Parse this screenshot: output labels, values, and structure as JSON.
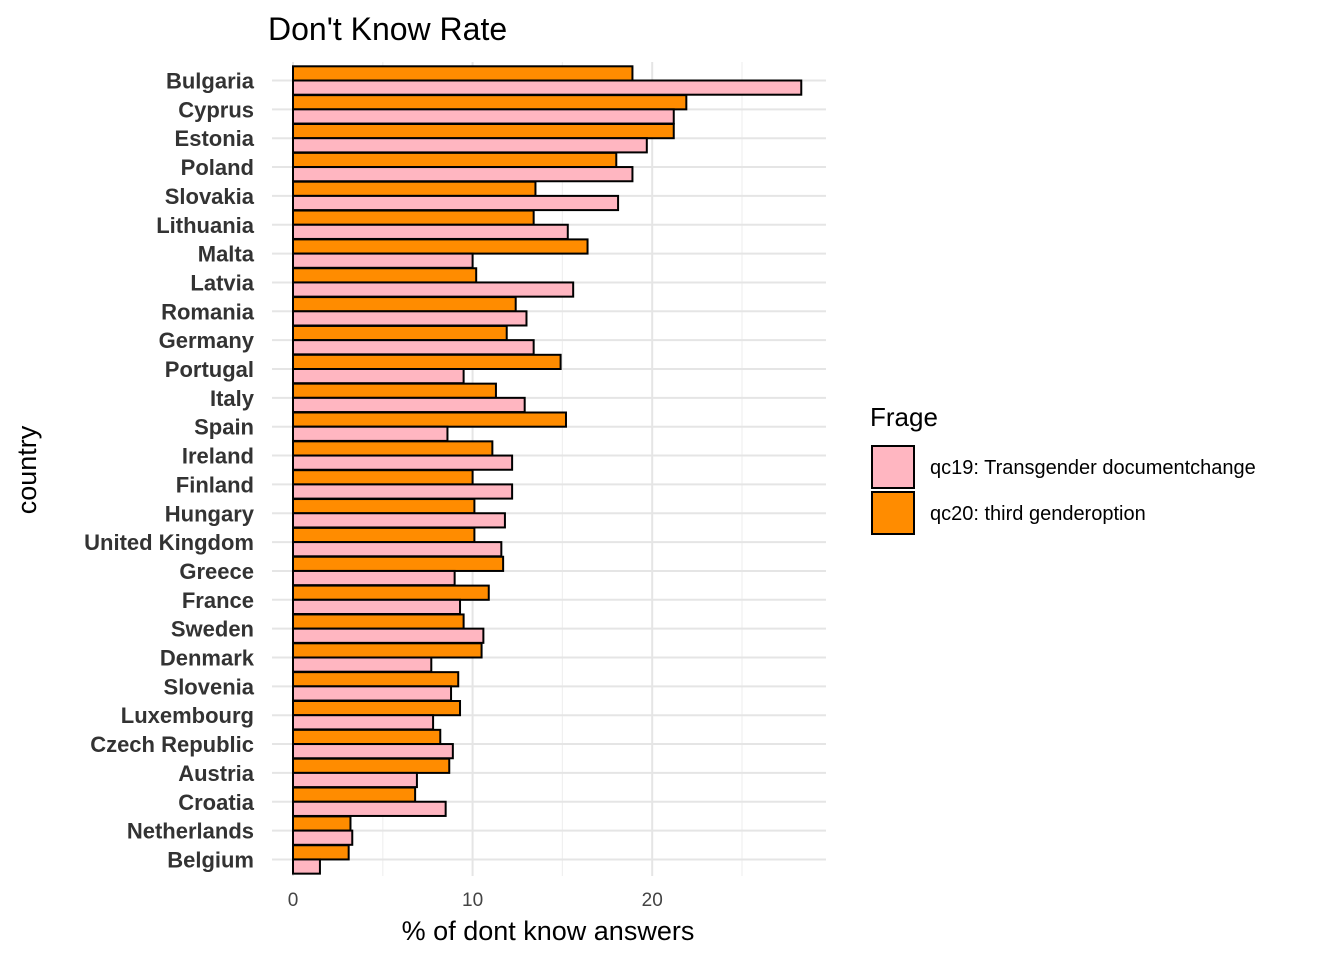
{
  "chart_data": {
    "type": "bar",
    "orientation": "horizontal",
    "title": "Don't Know Rate",
    "xlabel": "% of dont know answers",
    "ylabel": "country",
    "xlim": [
      0,
      29.5
    ],
    "xticks": [
      0,
      10,
      20
    ],
    "grid": true,
    "legend": {
      "title": "Frage",
      "placement": "right"
    },
    "categories": [
      "Bulgaria",
      "Cyprus",
      "Estonia",
      "Poland",
      "Slovakia",
      "Lithuania",
      "Malta",
      "Latvia",
      "Romania",
      "Germany",
      "Portugal",
      "Italy",
      "Spain",
      "Ireland",
      "Finland",
      "Hungary",
      "United Kingdom",
      "Greece",
      "France",
      "Sweden",
      "Denmark",
      "Slovenia",
      "Luxembourg",
      "Czech Republic",
      "Austria",
      "Croatia",
      "Netherlands",
      "Belgium"
    ],
    "series": [
      {
        "name": "qc20: third genderoption",
        "color": "#ff8c00",
        "values": [
          18.9,
          21.9,
          21.2,
          18.0,
          13.5,
          13.4,
          16.4,
          10.2,
          12.4,
          11.9,
          14.9,
          11.3,
          15.2,
          11.1,
          10.0,
          10.1,
          10.1,
          11.7,
          10.9,
          9.5,
          10.5,
          9.2,
          9.3,
          8.2,
          8.7,
          6.8,
          3.2,
          3.1
        ]
      },
      {
        "name": "qc19: Transgender documentchange",
        "color": "#ffb6c1",
        "values": [
          28.3,
          21.2,
          19.7,
          18.9,
          18.1,
          15.3,
          10.0,
          15.6,
          13.0,
          13.4,
          9.5,
          12.9,
          8.6,
          12.2,
          12.2,
          11.8,
          11.6,
          9.0,
          9.3,
          10.6,
          7.7,
          8.8,
          7.8,
          8.9,
          6.9,
          8.5,
          3.3,
          1.5
        ]
      }
    ]
  }
}
